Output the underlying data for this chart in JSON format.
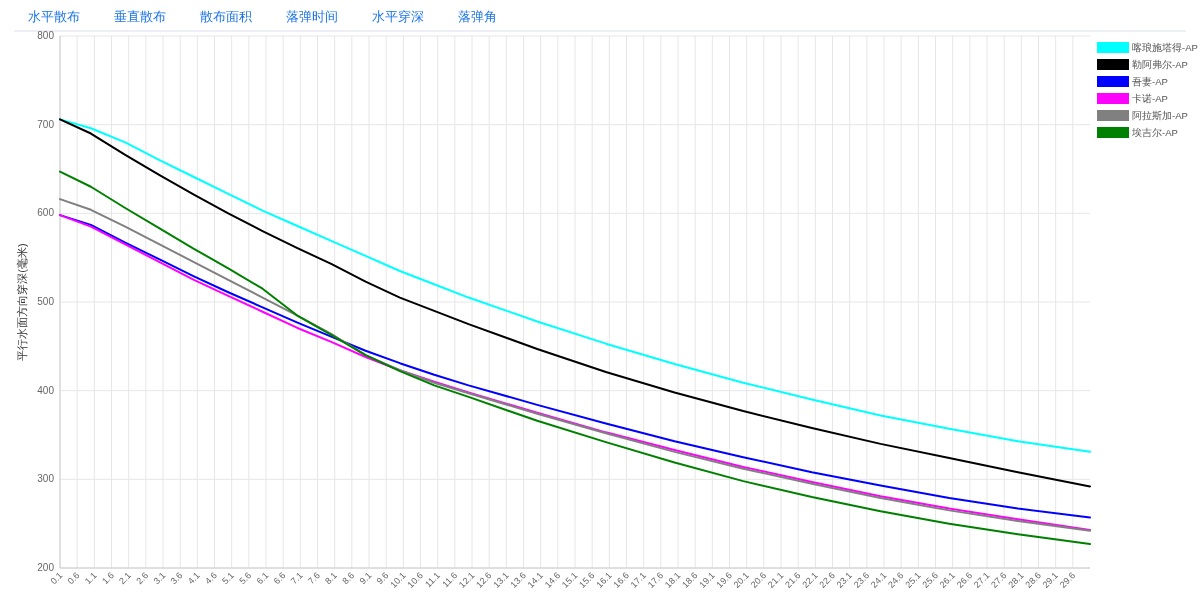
{
  "chart_data": {
    "type": "line",
    "annotations": [
      "水平散布",
      "垂直散布",
      "散布面积",
      "落弹时间",
      "水平穿深",
      "落弹角"
    ],
    "ylabel": "平行水面方向穿深(毫米)",
    "x": [
      0.1,
      1,
      2,
      3,
      4,
      5,
      6,
      7,
      8,
      9,
      10,
      11,
      12,
      14,
      16,
      18,
      20,
      22,
      24,
      26,
      28,
      30.1
    ],
    "series": [
      {
        "name": "喀琅施塔得-AP",
        "color": "#00ffff",
        "values": [
          706,
          696,
          680,
          660,
          641,
          622,
          603,
          586,
          569,
          552,
          535,
          520,
          505,
          478,
          453,
          430,
          409,
          390,
          372,
          357,
          343,
          331
        ]
      },
      {
        "name": "勒阿弗尔-AP",
        "color": "#000000",
        "values": [
          706,
          690,
          666,
          643,
          621,
          600,
          580,
          561,
          543,
          523,
          505,
          490,
          475,
          447,
          421,
          398,
          377,
          358,
          340,
          324,
          308,
          292
        ]
      },
      {
        "name": "吾妻-AP",
        "color": "#0000ff",
        "values": [
          598,
          587,
          567,
          548,
          529,
          511,
          494,
          477,
          461,
          445,
          431,
          418,
          406,
          384,
          363,
          343,
          325,
          308,
          293,
          279,
          267,
          257
        ]
      },
      {
        "name": "卡诺-AP",
        "color": "#ff00ff",
        "values": [
          598,
          585,
          565,
          545,
          525,
          507,
          489,
          471,
          455,
          438,
          423,
          410,
          398,
          375,
          353,
          333,
          314,
          297,
          281,
          267,
          255,
          243
        ]
      },
      {
        "name": "阿拉斯加-AP",
        "color": "#808080",
        "values": [
          616,
          604,
          585,
          565,
          545,
          525,
          505,
          485,
          464,
          440,
          423,
          409,
          397,
          374,
          352,
          331,
          312,
          295,
          279,
          265,
          253,
          242
        ]
      },
      {
        "name": "埃吉尔-AP",
        "color": "#008000",
        "values": [
          647,
          630,
          606,
          583,
          560,
          538,
          515,
          485,
          463,
          440,
          422,
          406,
          393,
          366,
          342,
          319,
          298,
          280,
          264,
          250,
          238,
          227
        ]
      }
    ],
    "xlim": [
      0.1,
      30.1
    ],
    "xticks": [
      0.1,
      0.6,
      1.1,
      1.6,
      2.1,
      2.6,
      3.1,
      3.6,
      4.1,
      4.6,
      5.1,
      5.6,
      6.1,
      6.6,
      7.1,
      7.6,
      8.1,
      8.6,
      9.1,
      9.6,
      10.1,
      10.6,
      11.1,
      11.6,
      12.1,
      12.6,
      13.1,
      13.6,
      14.1,
      14.6,
      15.1,
      15.6,
      16.1,
      16.6,
      17.1,
      17.6,
      18.1,
      18.6,
      19.1,
      19.6,
      20.1,
      20.6,
      21.1,
      21.6,
      22.1,
      22.6,
      23.1,
      23.6,
      24.1,
      24.6,
      25.1,
      25.6,
      26.1,
      26.6,
      27.1,
      27.6,
      28.1,
      28.6,
      29.1,
      29.6
    ],
    "ylim": [
      200,
      800
    ],
    "yticks": [
      200,
      300,
      400,
      500,
      600,
      700,
      800
    ],
    "grid": true,
    "legend": "right",
    "marker": "none",
    "line_style": "solid"
  }
}
